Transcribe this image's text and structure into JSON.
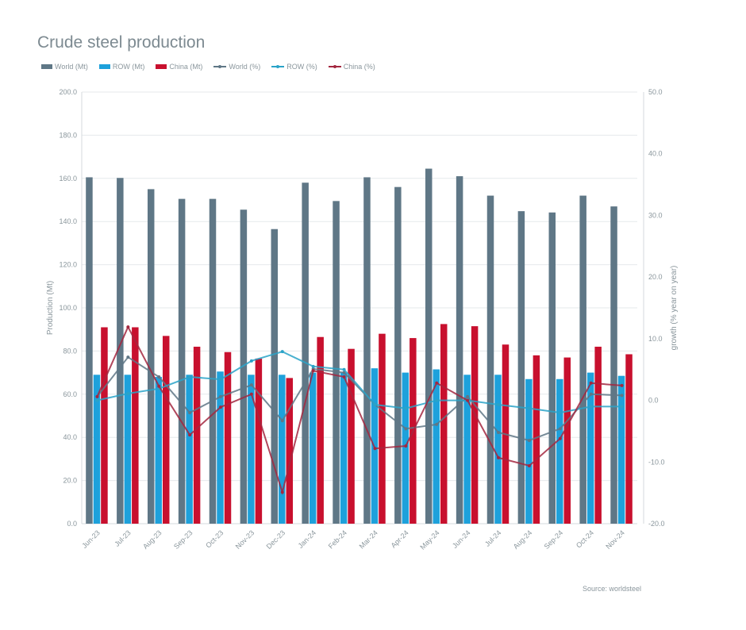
{
  "chart_data": {
    "type": "bar",
    "title": "Crude steel production",
    "categories": [
      "Jun-23",
      "Jul-23",
      "Aug-23",
      "Sep-23",
      "Oct-23",
      "Nov-23",
      "Dec-23",
      "Jan-24",
      "Feb-24",
      "Mar-24",
      "Apr-24",
      "May-24",
      "Jun-24",
      "Jul-24",
      "Aug-24",
      "Sep-24",
      "Oct-24",
      "Nov-24"
    ],
    "ylabel": "Production (Mt)",
    "y2label": "growth (% year on year)",
    "ylim": [
      0,
      200
    ],
    "y2lim": [
      -20,
      50
    ],
    "yticks": [
      "0.0",
      "20.0",
      "40.0",
      "60.0",
      "80.0",
      "100.0",
      "120.0",
      "140.0",
      "160.0",
      "180.0",
      "200.0"
    ],
    "y2ticks": [
      "-20.0",
      "-10.0",
      "0.0",
      "10.0",
      "20.0",
      "30.0",
      "40.0",
      "50.0"
    ],
    "grid": true,
    "legend_position": "top-left",
    "series": [
      {
        "name": "World (Mt)",
        "kind": "bar",
        "axis": "left",
        "color": "#5f7786",
        "values": [
          160.5,
          160.2,
          155,
          150.5,
          150.5,
          145.5,
          136.5,
          158,
          149.5,
          160.5,
          156,
          164.5,
          161,
          152,
          144.8,
          144.2,
          152,
          147
        ]
      },
      {
        "name": "ROW (Mt)",
        "kind": "bar",
        "axis": "left",
        "color": "#1ea1db",
        "values": [
          69,
          69,
          68,
          69,
          70.5,
          69,
          69,
          70,
          70,
          72,
          70,
          71.5,
          69,
          69,
          67,
          67,
          70,
          68.5
        ]
      },
      {
        "name": "China (Mt)",
        "kind": "bar",
        "axis": "left",
        "color": "#c8102e",
        "values": [
          91,
          91,
          87,
          82,
          79.5,
          76.5,
          67.5,
          86.5,
          81,
          88,
          86,
          92.5,
          91.5,
          83,
          78,
          77,
          82,
          78.5
        ]
      },
      {
        "name": "World (%)",
        "kind": "line",
        "axis": "right",
        "color": "#5f7786",
        "values": [
          0.6,
          7.0,
          3.8,
          -2.0,
          0.6,
          2.5,
          -3.3,
          5.1,
          4.5,
          -0.7,
          -4.6,
          -3.9,
          0.6,
          -5.2,
          -6.5,
          -4.6,
          1.0,
          0.8
        ]
      },
      {
        "name": "ROW (%)",
        "kind": "line",
        "axis": "right",
        "color": "#2aa3c8",
        "values": [
          0,
          1.1,
          1.9,
          3.8,
          3.4,
          6.4,
          7.9,
          5.5,
          5.0,
          -0.7,
          -1.3,
          0,
          0,
          -0.7,
          -1.3,
          -2.0,
          -1.0,
          -1.0
        ]
      },
      {
        "name": "China (%)",
        "kind": "line",
        "axis": "right",
        "color": "#a3273f",
        "values": [
          0.6,
          11.9,
          2.3,
          -5.6,
          -1.1,
          1.0,
          -14.9,
          4.8,
          3.8,
          -7.8,
          -7.4,
          2.8,
          0.0,
          -9.3,
          -10.6,
          -6.2,
          2.8,
          2.4
        ]
      }
    ],
    "source": "Source: worldsteel"
  }
}
